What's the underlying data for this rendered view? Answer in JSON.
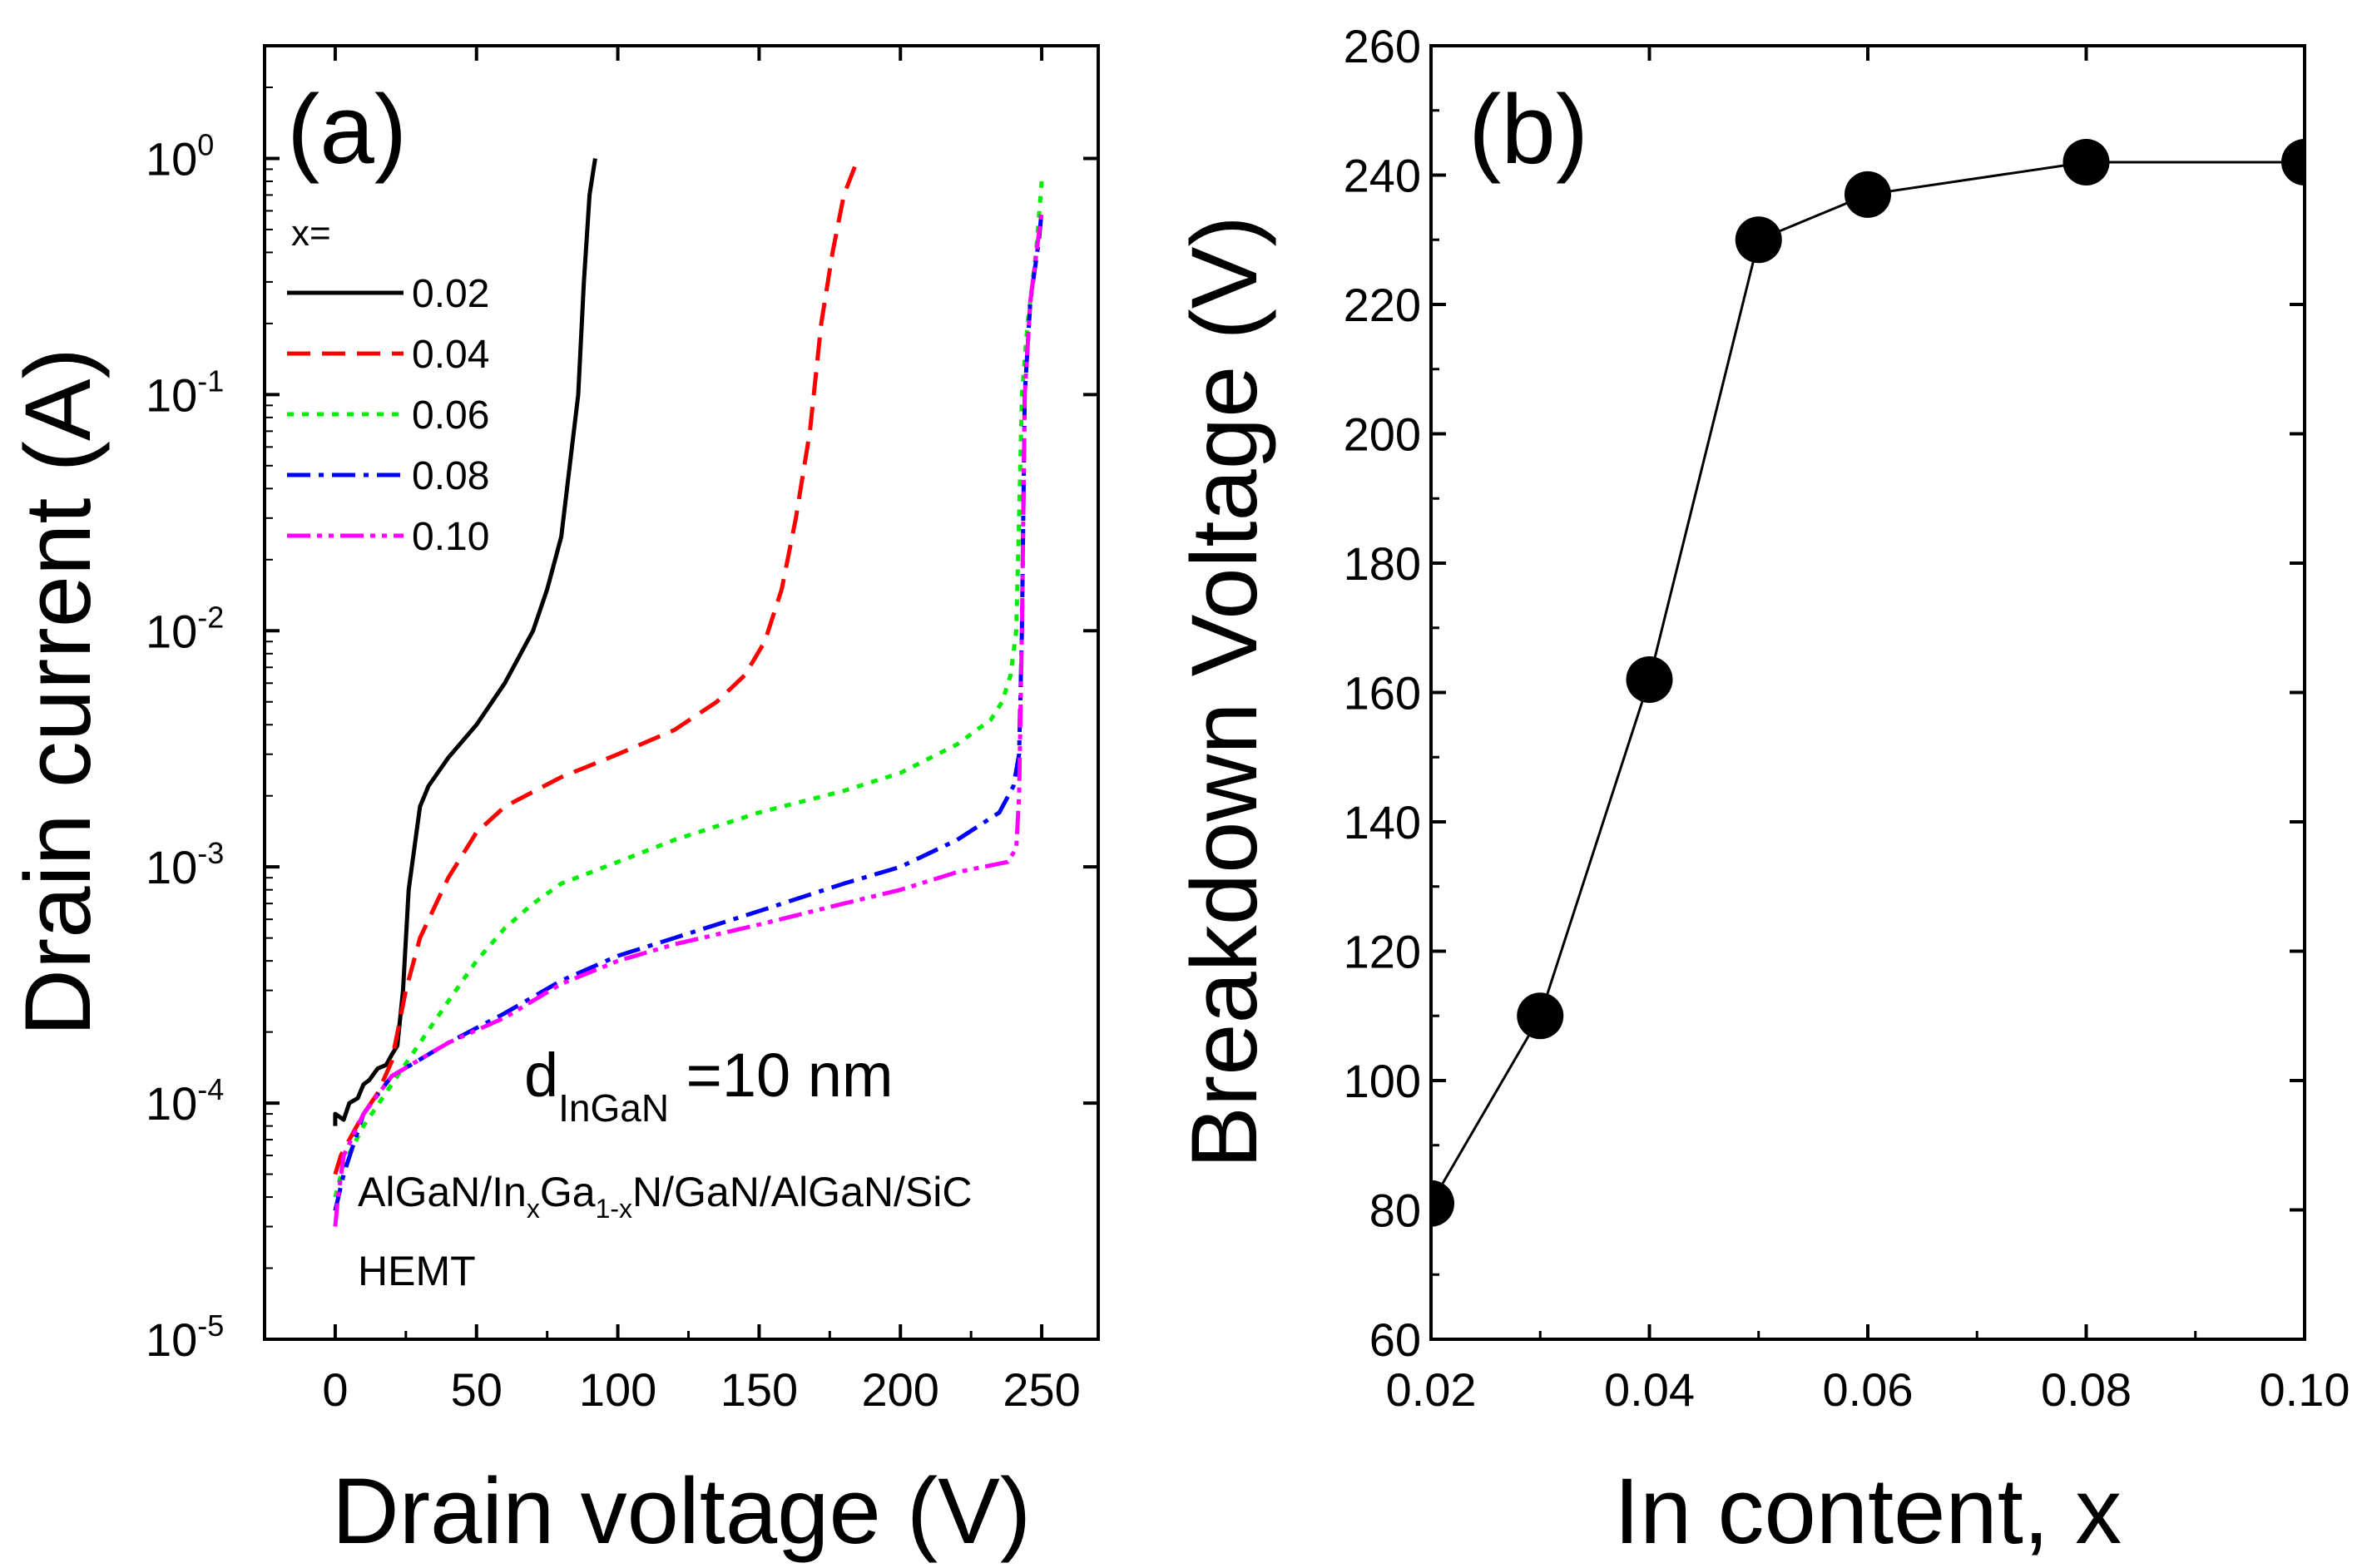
{
  "chart_data": [
    {
      "panel_label": "(a)",
      "type": "line",
      "xlabel": "Drain voltage (V)",
      "ylabel": "Drain current (A)",
      "xlim": [
        -25,
        270
      ],
      "ylim": [
        1e-05,
        3
      ],
      "yscale": "log",
      "xticks": [
        0,
        50,
        100,
        150,
        200,
        250
      ],
      "yticks": [
        {
          "value": 1e-05,
          "base": "10",
          "exp": "-5"
        },
        {
          "value": 0.0001,
          "base": "10",
          "exp": "-4"
        },
        {
          "value": 0.001,
          "base": "10",
          "exp": "-3"
        },
        {
          "value": 0.01,
          "base": "10",
          "exp": "-2"
        },
        {
          "value": 0.1,
          "base": "10",
          "exp": "-1"
        },
        {
          "value": 1,
          "base": "10",
          "exp": "0"
        }
      ],
      "legend_title": "x=",
      "legend_placement": "top-left",
      "annotations": {
        "d_main": "d",
        "d_sub": "InGaN",
        "d_value": " =10 nm",
        "structure_parts": [
          "AlGaN/In",
          "x",
          "Ga",
          "1-x",
          "N/GaN/AlGaN/SiC"
        ],
        "device": "HEMT"
      },
      "series": [
        {
          "name": "0.02",
          "color": "#000000",
          "dash": "solid",
          "points": [
            [
              0,
              8e-05
            ],
            [
              0,
              9e-05
            ],
            [
              3,
              8.5e-05
            ],
            [
              5,
              0.0001
            ],
            [
              8,
              0.000105
            ],
            [
              10,
              0.00012
            ],
            [
              12,
              0.000125
            ],
            [
              15,
              0.00014
            ],
            [
              18,
              0.000145
            ],
            [
              20,
              0.00016
            ],
            [
              22,
              0.000175
            ],
            [
              24,
              0.0003
            ],
            [
              26,
              0.0008
            ],
            [
              28,
              0.0012
            ],
            [
              30,
              0.0018
            ],
            [
              33,
              0.0022
            ],
            [
              40,
              0.0029
            ],
            [
              50,
              0.004
            ],
            [
              60,
              0.006
            ],
            [
              70,
              0.01
            ],
            [
              75,
              0.015
            ],
            [
              80,
              0.025
            ],
            [
              83,
              0.05
            ],
            [
              86,
              0.1
            ],
            [
              88,
              0.3
            ],
            [
              90,
              0.7
            ],
            [
              92,
              1
            ]
          ]
        },
        {
          "name": "0.04",
          "color": "#ff0000",
          "dash": "dashed",
          "points": [
            [
              0,
              5e-05
            ],
            [
              2,
              6e-05
            ],
            [
              5,
              7e-05
            ],
            [
              10,
              9e-05
            ],
            [
              15,
              0.00011
            ],
            [
              20,
              0.00015
            ],
            [
              25,
              0.0003
            ],
            [
              30,
              0.0005
            ],
            [
              40,
              0.0009
            ],
            [
              50,
              0.0014
            ],
            [
              60,
              0.0018
            ],
            [
              80,
              0.0024
            ],
            [
              100,
              0.003
            ],
            [
              120,
              0.0038
            ],
            [
              135,
              0.005
            ],
            [
              145,
              0.0065
            ],
            [
              152,
              0.009
            ],
            [
              158,
              0.015
            ],
            [
              163,
              0.03
            ],
            [
              168,
              0.07
            ],
            [
              172,
              0.2
            ],
            [
              176,
              0.4
            ],
            [
              180,
              0.7
            ],
            [
              185,
              1
            ]
          ]
        },
        {
          "name": "0.06",
          "color": "#00ee00",
          "dash": "dotted",
          "points": [
            [
              0,
              4e-05
            ],
            [
              3,
              5.5e-05
            ],
            [
              10,
              8e-05
            ],
            [
              20,
              0.00012
            ],
            [
              30,
              0.00018
            ],
            [
              40,
              0.00027
            ],
            [
              50,
              0.0004
            ],
            [
              60,
              0.00055
            ],
            [
              70,
              0.0007
            ],
            [
              80,
              0.00085
            ],
            [
              100,
              0.00105
            ],
            [
              120,
              0.0013
            ],
            [
              150,
              0.0017
            ],
            [
              180,
              0.0021
            ],
            [
              200,
              0.0025
            ],
            [
              220,
              0.0033
            ],
            [
              232,
              0.0042
            ],
            [
              236,
              0.005
            ],
            [
              239,
              0.0065
            ],
            [
              241,
              0.01
            ],
            [
              242,
              0.03
            ],
            [
              243,
              0.1
            ],
            [
              245,
              0.2
            ],
            [
              248,
              0.4
            ],
            [
              250,
              0.8
            ]
          ]
        },
        {
          "name": "0.08",
          "color": "#0000ff",
          "dash": "dashdot",
          "points": [
            [
              0,
              3.5e-05
            ],
            [
              3,
              5e-05
            ],
            [
              10,
              9e-05
            ],
            [
              20,
              0.00013
            ],
            [
              40,
              0.00018
            ],
            [
              60,
              0.00024
            ],
            [
              80,
              0.00033
            ],
            [
              100,
              0.00042
            ],
            [
              120,
              0.0005
            ],
            [
              150,
              0.00065
            ],
            [
              180,
              0.00085
            ],
            [
              200,
              0.001
            ],
            [
              220,
              0.0013
            ],
            [
              235,
              0.0017
            ],
            [
              240,
              0.0022
            ],
            [
              242,
              0.003
            ],
            [
              243,
              0.01
            ],
            [
              244,
              0.1
            ],
            [
              246,
              0.25
            ],
            [
              249,
              0.45
            ],
            [
              250,
              0.6
            ]
          ]
        },
        {
          "name": "0.10",
          "color": "#ff00ff",
          "dash": "dashdotdot",
          "points": [
            [
              0,
              3e-05
            ],
            [
              1,
              4e-05
            ],
            [
              3,
              6e-05
            ],
            [
              10,
              9e-05
            ],
            [
              20,
              0.00013
            ],
            [
              40,
              0.00018
            ],
            [
              60,
              0.00023
            ],
            [
              80,
              0.00032
            ],
            [
              100,
              0.0004
            ],
            [
              120,
              0.00047
            ],
            [
              150,
              0.00057
            ],
            [
              180,
              0.0007
            ],
            [
              200,
              0.0008
            ],
            [
              220,
              0.00095
            ],
            [
              238,
              0.00105
            ],
            [
              241,
              0.0012
            ],
            [
              242,
              0.002
            ],
            [
              243,
              0.01
            ],
            [
              244,
              0.1
            ],
            [
              246,
              0.25
            ],
            [
              250,
              0.6
            ]
          ]
        }
      ]
    },
    {
      "panel_label": "(b)",
      "type": "line",
      "marker": "circle",
      "xlabel": "In content, x",
      "ylabel": "Breakdown Voltage (V)",
      "xlim": [
        0.02,
        0.1
      ],
      "ylim": [
        60,
        260
      ],
      "xticks": [
        "0.02",
        "0.04",
        "0.06",
        "0.08",
        "0.10"
      ],
      "yticks": [
        60,
        80,
        100,
        120,
        140,
        160,
        180,
        200,
        220,
        240,
        260
      ],
      "x": [
        0.02,
        0.03,
        0.04,
        0.05,
        0.06,
        0.08,
        0.1
      ],
      "y": [
        81,
        110,
        162,
        230,
        237,
        242,
        242
      ]
    }
  ]
}
